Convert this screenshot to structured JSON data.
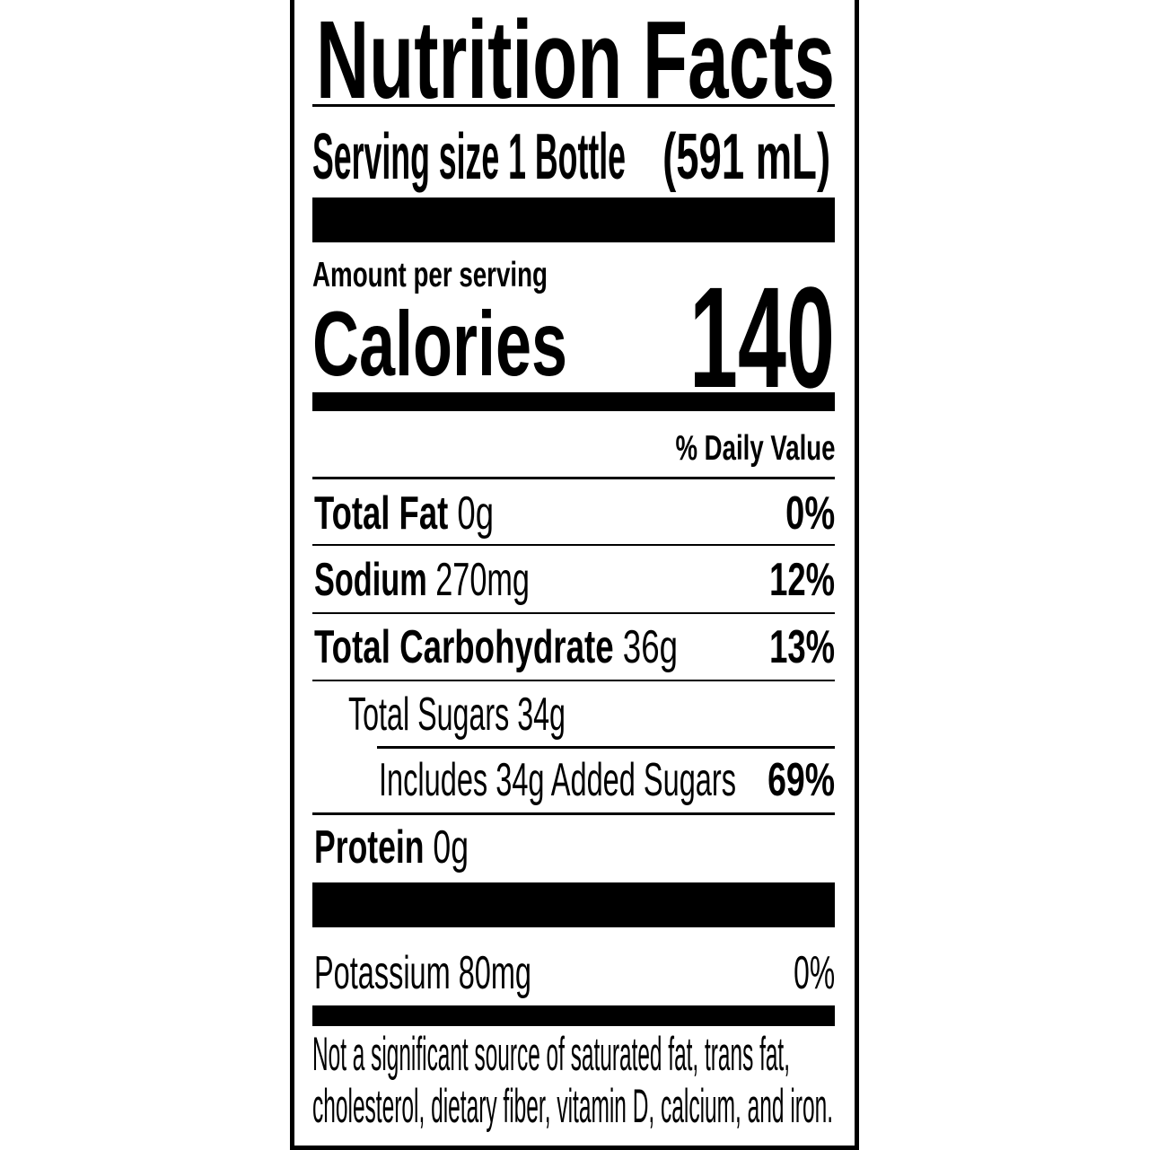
{
  "label": {
    "title": "Nutrition Facts",
    "serving_size_label": "Serving size 1 Bottle",
    "serving_size_volume": "(591 mL)",
    "amount_per_serving": "Amount per serving",
    "calories_label": "Calories",
    "calories_value": "140",
    "daily_value_header": "% Daily Value",
    "nutrients": [
      {
        "name": "Total Fat",
        "amount": " 0g",
        "dv": "0%"
      },
      {
        "name": "Sodium",
        "amount": " 270mg",
        "dv": "12%"
      },
      {
        "name": "Total Carbohydrate",
        "amount": " 36g",
        "dv": "13%"
      },
      {
        "name": "Total Sugars 34g",
        "amount": "",
        "dv": ""
      },
      {
        "name": "Includes 34g Added Sugars",
        "amount": "",
        "dv": "69%"
      },
      {
        "name": "Protein",
        "amount": " 0g",
        "dv": ""
      },
      {
        "name": "Potassium 80mg",
        "amount": "",
        "dv": "0%"
      }
    ],
    "footnote_line1": "Not a significant source of saturated fat, trans fat,",
    "footnote_line2": "cholesterol, dietary fiber, vitamin D, calcium, and iron."
  }
}
